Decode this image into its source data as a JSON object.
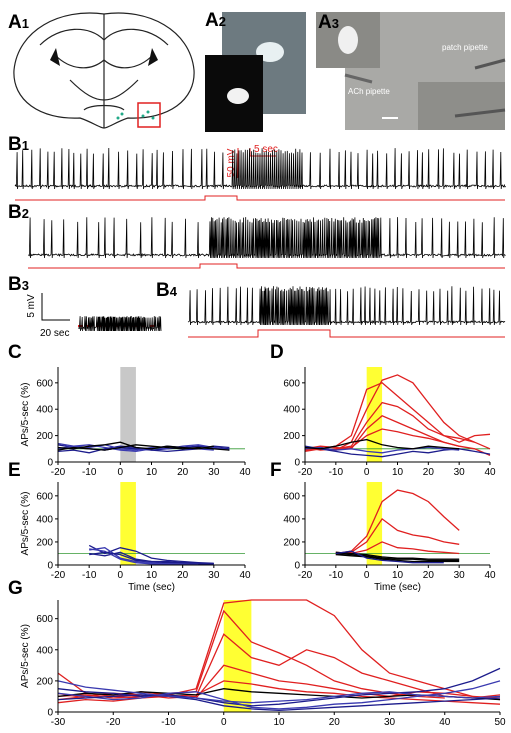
{
  "panels": [
    {
      "letter": "A",
      "sub": "1"
    },
    {
      "letter": "A",
      "sub": "2"
    },
    {
      "letter": "A",
      "sub": "3"
    },
    {
      "letter": "B",
      "sub": "1"
    },
    {
      "letter": "B",
      "sub": "2"
    },
    {
      "letter": "B",
      "sub": "3"
    },
    {
      "letter": "B",
      "sub": "4"
    }
  ],
  "image_labels": {
    "patch": "patch pipette",
    "ach": "ACh pipette"
  },
  "scale_bars": {
    "b1_voltage": "50 mV",
    "b1_time": "5 sec",
    "b3_voltage": "5 mV",
    "b3_time": "20 sec"
  },
  "chart_data": [
    {
      "type": "line",
      "panel": "C",
      "ylabel": "APs/5-sec (%)",
      "x": [
        -20,
        -15,
        -10,
        -5,
        0,
        5,
        10,
        15,
        20,
        25,
        30,
        35
      ],
      "xlim": [
        -20,
        40
      ],
      "xticks": [
        -20,
        -10,
        0,
        10,
        20,
        30,
        40
      ],
      "ylim": [
        0,
        720
      ],
      "yticks": [
        0,
        200,
        400,
        600
      ],
      "highlight": {
        "x": [
          0,
          5
        ],
        "color": "#c8c8c8"
      },
      "reference_line": {
        "y": 100,
        "color": "#339933"
      },
      "series": [
        {
          "color": "#1c1c8c",
          "values": [
            130,
            110,
            100,
            90,
            110,
            100,
            90,
            100,
            110,
            120,
            110,
            100
          ]
        },
        {
          "color": "#3a3ab0",
          "values": [
            100,
            120,
            130,
            110,
            90,
            80,
            100,
            120,
            110,
            100,
            90,
            null
          ]
        },
        {
          "color": "#1c1c8c",
          "values": [
            80,
            90,
            70,
            100,
            120,
            110,
            90,
            80,
            90,
            100,
            120,
            110
          ]
        },
        {
          "color": "#3a3ab0",
          "values": [
            140,
            120,
            110,
            130,
            100,
            90,
            110,
            100,
            120,
            130,
            110,
            90
          ]
        },
        {
          "color": "#000000",
          "values": [
            110,
            100,
            120,
            130,
            150,
            110,
            100,
            120,
            110,
            100,
            120,
            null
          ]
        },
        {
          "color": "#000000",
          "values": [
            90,
            110,
            100,
            90,
            110,
            130,
            120,
            110,
            100,
            110,
            100,
            90
          ]
        }
      ]
    },
    {
      "type": "line",
      "panel": "D",
      "x": [
        -20,
        -15,
        -10,
        -5,
        0,
        5,
        10,
        15,
        20,
        25,
        30,
        35,
        40
      ],
      "xlim": [
        -20,
        40
      ],
      "xticks": [
        -20,
        -10,
        0,
        10,
        20,
        30,
        40
      ],
      "ylim": [
        0,
        720
      ],
      "yticks": [
        0,
        200,
        400,
        600
      ],
      "highlight": {
        "x": [
          0,
          5
        ],
        "color": "#ffff33"
      },
      "reference_line": {
        "y": 100,
        "color": "#339933"
      },
      "series": [
        {
          "color": "#e02020",
          "values": [
            100,
            110,
            90,
            150,
            400,
            620,
            660,
            600,
            450,
            300,
            200,
            150,
            null
          ]
        },
        {
          "color": "#e02020",
          "values": [
            90,
            100,
            120,
            200,
            550,
            600,
            500,
            400,
            300,
            200,
            150,
            200,
            210
          ]
        },
        {
          "color": "#e02020",
          "values": [
            110,
            90,
            100,
            120,
            300,
            450,
            420,
            350,
            250,
            200,
            180,
            150,
            100
          ]
        },
        {
          "color": "#e02020",
          "values": [
            100,
            120,
            110,
            100,
            250,
            350,
            300,
            250,
            200,
            150,
            120,
            100,
            50
          ]
        },
        {
          "color": "#e02020",
          "values": [
            80,
            100,
            90,
            110,
            200,
            250,
            230,
            200,
            180,
            150,
            120,
            null,
            null
          ]
        },
        {
          "color": "#1c1c8c",
          "values": [
            120,
            100,
            80,
            60,
            50,
            40,
            60,
            80,
            70,
            90,
            100,
            80,
            60
          ]
        },
        {
          "color": "#3a3ab0",
          "values": [
            100,
            110,
            90,
            100,
            80,
            70,
            90,
            100,
            110,
            100,
            90,
            null,
            null
          ]
        },
        {
          "color": "#000000",
          "values": [
            110,
            100,
            120,
            150,
            170,
            130,
            110,
            100,
            120,
            110,
            100,
            null,
            null
          ]
        }
      ]
    },
    {
      "type": "line",
      "panel": "E",
      "ylabel": "APs/5-sec (%)",
      "xlabel": "Time (sec)",
      "x": [
        -10,
        -5,
        0,
        5,
        10,
        15,
        20,
        25,
        30
      ],
      "xlim": [
        -20,
        40
      ],
      "xticks": [
        -20,
        -10,
        0,
        10,
        20,
        30,
        40
      ],
      "ylim": [
        0,
        720
      ],
      "yticks": [
        0,
        200,
        400,
        600
      ],
      "highlight": {
        "x": [
          0,
          5
        ],
        "color": "#ffff33"
      },
      "reference_line": {
        "y": 100,
        "color": "#339933"
      },
      "series": [
        {
          "color": "#1c1c8c",
          "values": [
            170,
            100,
            150,
            120,
            60,
            40,
            30,
            20,
            null
          ]
        },
        {
          "color": "#3a3ab0",
          "values": [
            130,
            150,
            60,
            30,
            20,
            10,
            10,
            10,
            10
          ]
        },
        {
          "color": "#1c1c8c",
          "values": [
            100,
            80,
            110,
            50,
            30,
            20,
            20,
            10,
            10
          ]
        },
        {
          "color": "#3a3ab0",
          "values": [
            140,
            120,
            50,
            20,
            10,
            10,
            5,
            5,
            null
          ]
        },
        {
          "color": "#1c1c8c",
          "values": [
            90,
            110,
            90,
            40,
            30,
            30,
            20,
            20,
            15
          ]
        }
      ]
    },
    {
      "type": "line",
      "panel": "F",
      "xlabel": "Time (sec)",
      "x": [
        -10,
        -5,
        0,
        5,
        10,
        15,
        20,
        25,
        30
      ],
      "xlim": [
        -20,
        40
      ],
      "xticks": [
        -20,
        -10,
        0,
        10,
        20,
        30,
        40
      ],
      "ylim": [
        0,
        720
      ],
      "yticks": [
        0,
        200,
        400,
        600
      ],
      "highlight": {
        "x": [
          0,
          5
        ],
        "color": "#ffff33"
      },
      "reference_line": {
        "y": 100,
        "color": "#339933"
      },
      "series": [
        {
          "color": "#e02020",
          "values": [
            100,
            120,
            250,
            550,
            650,
            620,
            550,
            420,
            300
          ]
        },
        {
          "color": "#e02020",
          "values": [
            90,
            110,
            200,
            400,
            300,
            260,
            240,
            200,
            180
          ]
        },
        {
          "color": "#e02020",
          "values": [
            110,
            100,
            130,
            200,
            150,
            140,
            120,
            110,
            100
          ]
        },
        {
          "color": "#000000",
          "values": [
            100,
            90,
            80,
            60,
            50,
            50,
            40,
            40,
            40
          ]
        },
        {
          "color": "#000000",
          "values": [
            110,
            100,
            90,
            70,
            60,
            60,
            50,
            50,
            50
          ]
        },
        {
          "color": "#000000",
          "values": [
            90,
            80,
            70,
            50,
            40,
            30,
            30,
            30,
            30
          ]
        },
        {
          "color": "#1c1c8c",
          "values": [
            100,
            120,
            60,
            40,
            30,
            20,
            20,
            20,
            null
          ]
        }
      ]
    },
    {
      "type": "line",
      "panel": "G",
      "ylabel": "APs/5-sec (%)",
      "xlabel": "Time (sec)",
      "x": [
        -30,
        -25,
        -20,
        -15,
        -10,
        -5,
        0,
        5,
        10,
        15,
        20,
        25,
        30,
        35,
        40,
        45,
        50
      ],
      "xlim": [
        -30,
        50
      ],
      "xticks": [
        -30,
        -20,
        -10,
        0,
        10,
        20,
        30,
        40,
        50
      ],
      "ylim": [
        0,
        720
      ],
      "yticks": [
        0,
        200,
        400,
        600
      ],
      "highlight": {
        "x": [
          0,
          5
        ],
        "color": "#ffff33"
      },
      "series": [
        {
          "color": "#e02020",
          "values": [
            250,
            120,
            100,
            90,
            110,
            150,
            700,
            720,
            720,
            720,
            620,
            400,
            250,
            200,
            150,
            100,
            80
          ]
        },
        {
          "color": "#e02020",
          "values": [
            100,
            110,
            90,
            100,
            120,
            130,
            650,
            450,
            380,
            300,
            200,
            150,
            120,
            100,
            90,
            null,
            null
          ]
        },
        {
          "color": "#e02020",
          "values": [
            80,
            100,
            120,
            110,
            90,
            100,
            500,
            350,
            300,
            400,
            350,
            250,
            200,
            150,
            100,
            90,
            110
          ]
        },
        {
          "color": "#e02020",
          "values": [
            120,
            90,
            100,
            130,
            110,
            90,
            300,
            250,
            200,
            180,
            150,
            120,
            100,
            130,
            120,
            100,
            90
          ]
        },
        {
          "color": "#e02020",
          "values": [
            60,
            80,
            70,
            90,
            100,
            110,
            200,
            180,
            150,
            130,
            120,
            100,
            90,
            80,
            70,
            60,
            50
          ]
        },
        {
          "color": "#000000",
          "values": [
            100,
            120,
            110,
            130,
            120,
            110,
            150,
            130,
            120,
            110,
            100,
            90,
            100,
            110,
            100,
            90,
            80
          ]
        },
        {
          "color": "#1c1c8c",
          "values": [
            150,
            130,
            120,
            100,
            110,
            90,
            60,
            40,
            50,
            70,
            90,
            110,
            120,
            130,
            150,
            200,
            280
          ]
        },
        {
          "color": "#3a3ab0",
          "values": [
            120,
            100,
            80,
            90,
            120,
            130,
            80,
            30,
            20,
            30,
            50,
            60,
            80,
            100,
            120,
            150,
            200
          ]
        },
        {
          "color": "#1c1c8c",
          "values": [
            80,
            90,
            100,
            110,
            100,
            80,
            40,
            20,
            10,
            20,
            30,
            40,
            50,
            60,
            70,
            80,
            90
          ]
        },
        {
          "color": "#3a3ab0",
          "values": [
            200,
            160,
            140,
            120,
            100,
            90,
            70,
            60,
            70,
            80,
            100,
            120,
            130,
            110,
            100,
            90,
            100
          ]
        }
      ]
    }
  ]
}
